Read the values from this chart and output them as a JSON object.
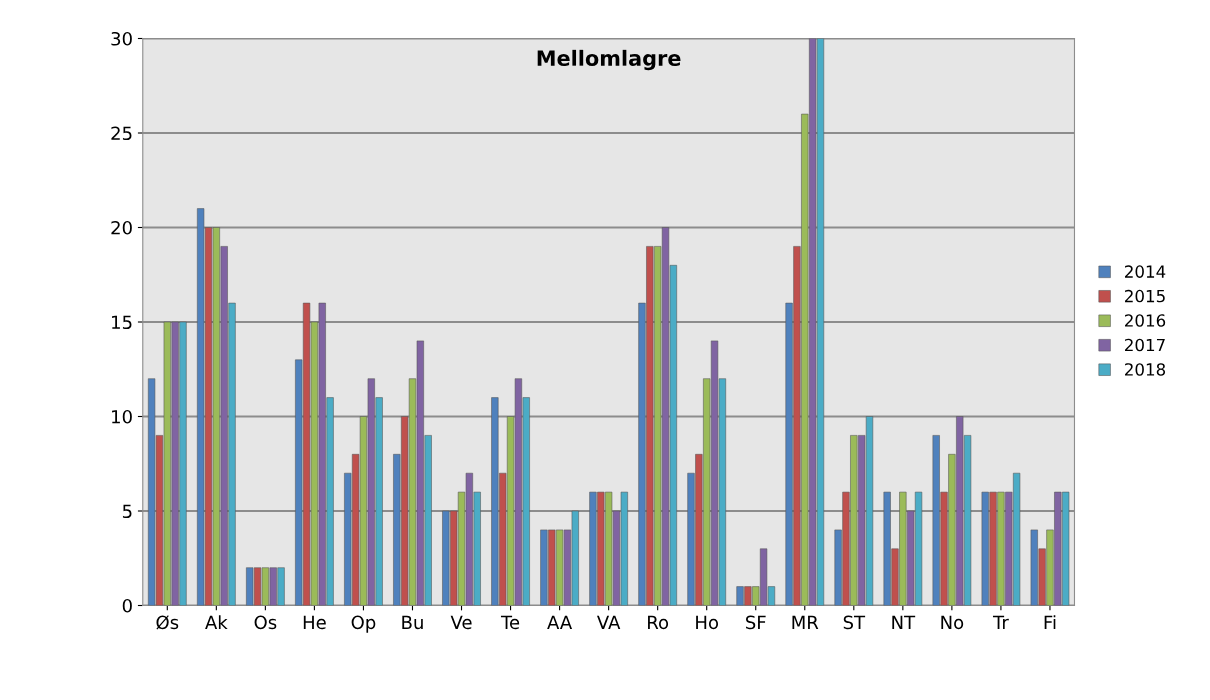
{
  "chart_data": {
    "type": "bar",
    "title": "Mellomlagre",
    "categories": [
      "Øs",
      "Ak",
      "Os",
      "He",
      "Op",
      "Bu",
      "Ve",
      "Te",
      "AA",
      "VA",
      "Ro",
      "Ho",
      "SF",
      "MR",
      "ST",
      "NT",
      "No",
      "Tr",
      "Fi"
    ],
    "series": [
      {
        "name": "2014",
        "color": "#4f81bd",
        "values": [
          12,
          21,
          2,
          13,
          7,
          8,
          5,
          11,
          4,
          6,
          16,
          7,
          1,
          16,
          4,
          6,
          9,
          6,
          4
        ]
      },
      {
        "name": "2015",
        "color": "#c0504d",
        "values": [
          9,
          20,
          2,
          16,
          8,
          10,
          5,
          7,
          4,
          6,
          19,
          8,
          1,
          19,
          6,
          3,
          6,
          6,
          3
        ]
      },
      {
        "name": "2016",
        "color": "#9bbb59",
        "values": [
          15,
          20,
          2,
          15,
          10,
          12,
          6,
          10,
          4,
          6,
          19,
          12,
          1,
          26,
          9,
          6,
          8,
          6,
          4
        ]
      },
      {
        "name": "2017",
        "color": "#8064a2",
        "values": [
          15,
          19,
          2,
          16,
          12,
          14,
          7,
          12,
          4,
          5,
          20,
          14,
          3,
          30,
          9,
          5,
          10,
          6,
          6
        ]
      },
      {
        "name": "2018",
        "color": "#4bacc6",
        "values": [
          15,
          16,
          2,
          11,
          11,
          9,
          6,
          11,
          5,
          6,
          18,
          12,
          1,
          30,
          10,
          6,
          9,
          7,
          6
        ]
      }
    ],
    "ylim": [
      0,
      30
    ],
    "yticks": [
      0,
      5,
      10,
      15,
      20,
      25,
      30
    ],
    "grid": "y",
    "legend": "right"
  }
}
